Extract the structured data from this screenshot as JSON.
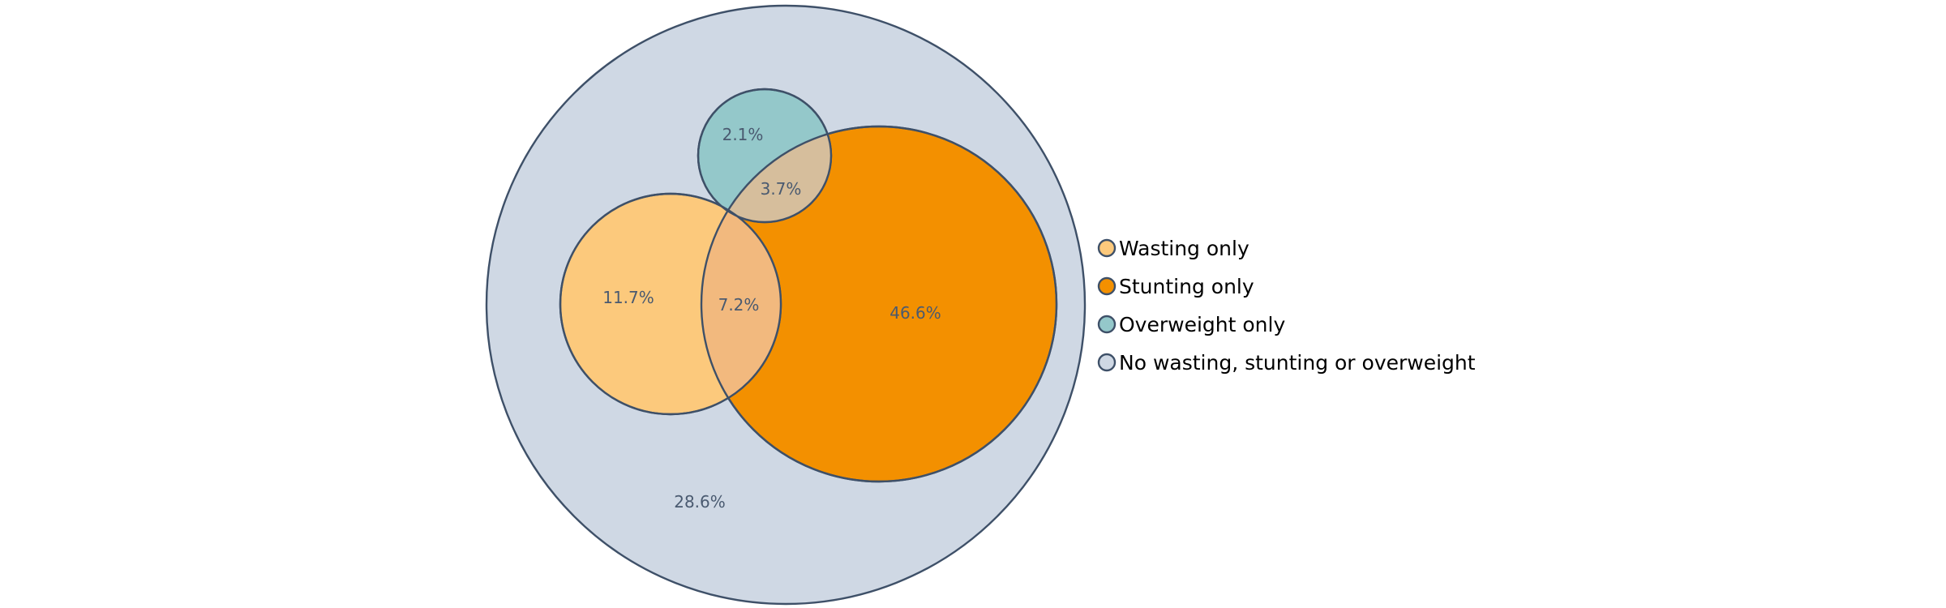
{
  "diagram": {
    "type": "euler",
    "outline_color": "#3e5068",
    "sets": [
      {
        "key": "wasting",
        "legend": "Wasting only",
        "color": "#fcc97c"
      },
      {
        "key": "stunting",
        "legend": "Stunting only",
        "color": "#f39000"
      },
      {
        "key": "overweight",
        "legend": "Overweight only",
        "color": "#94c8ca"
      },
      {
        "key": "none",
        "legend": "No wasting, stunting or overweight",
        "color": "#cfd8e4"
      }
    ],
    "overlap_colors": {
      "wasting_stunting": "#f2b97e",
      "overweight_stunting": "#d6be9c"
    },
    "regions": {
      "none": "28.6%",
      "wasting_only": "11.7%",
      "wasting_stunting": "7.2%",
      "stunting_only": "46.6%",
      "overweight_only": "2.1%",
      "overweight_stunting": "3.7%"
    }
  }
}
